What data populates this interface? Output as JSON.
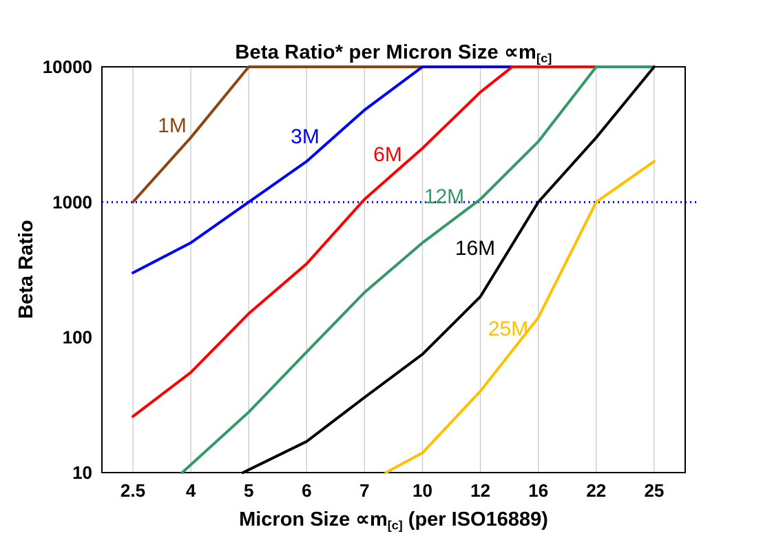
{
  "title": {
    "main": "Beta Ratio* per Micron Size ∝m",
    "sub": "[c]"
  },
  "y_axis_title": "Beta Ratio",
  "x_axis_title": {
    "pre": "Micron Size ∝m",
    "sub": "[c]",
    "post": " (per ISO16889)"
  },
  "chart_data": {
    "type": "line",
    "title": "Beta Ratio* per Micron Size ∝m[c]",
    "xlabel": "Micron Size ∝m[c] (per ISO16889)",
    "ylabel": "Beta Ratio",
    "y_scale": "log",
    "ylim": [
      10,
      10000
    ],
    "grid": "vertical-only",
    "legend_position": "inline-labels",
    "categories": [
      "2.5",
      "4",
      "5",
      "6",
      "7",
      "10",
      "12",
      "16",
      "22",
      "25"
    ],
    "y_tick_labels": [
      "10",
      "100",
      "1000",
      "10000"
    ],
    "reference_line": {
      "value": 1000,
      "color": "#0000EE",
      "style": "dotted"
    },
    "gridline_color": "#c9c9c9",
    "series": [
      {
        "name": "1M",
        "color": "#8B4513",
        "label_pos": [
          250,
          192
        ],
        "points": [
          [
            0,
            1000
          ],
          [
            1,
            3000
          ],
          [
            2,
            10000
          ],
          [
            5,
            10000
          ]
        ]
      },
      {
        "name": "3M",
        "color": "#0000FF",
        "label_pos": [
          443,
          208
        ],
        "points": [
          [
            0,
            300
          ],
          [
            1,
            500
          ],
          [
            2,
            1000
          ],
          [
            3,
            2000
          ],
          [
            4,
            4800
          ],
          [
            5,
            10000
          ],
          [
            6.55,
            10000
          ]
        ]
      },
      {
        "name": "6M",
        "color": "#FF0000",
        "label_pos": [
          563,
          234
        ],
        "points": [
          [
            0,
            26
          ],
          [
            1,
            55
          ],
          [
            2,
            150
          ],
          [
            3,
            350
          ],
          [
            4,
            1050
          ],
          [
            5,
            2500
          ],
          [
            6,
            6500
          ],
          [
            6.55,
            10000
          ],
          [
            8,
            10000
          ]
        ]
      },
      {
        "name": "12M",
        "color": "#339966",
        "label_pos": [
          645,
          295
        ],
        "points": [
          [
            0.85,
            10
          ],
          [
            2,
            28
          ],
          [
            3,
            78
          ],
          [
            4,
            215
          ],
          [
            5,
            500
          ],
          [
            6,
            1050
          ],
          [
            7,
            2800
          ],
          [
            8,
            10000
          ],
          [
            9,
            10000
          ]
        ]
      },
      {
        "name": "16M",
        "color": "#000000",
        "label_pos": [
          690,
          370
        ],
        "points": [
          [
            1.9,
            10
          ],
          [
            3,
            17
          ],
          [
            4,
            36
          ],
          [
            5,
            75
          ],
          [
            6,
            200
          ],
          [
            7,
            1000
          ],
          [
            8,
            3000
          ],
          [
            9,
            10000
          ]
        ]
      },
      {
        "name": "25M",
        "color": "#FFC000",
        "label_pos": [
          738,
          487
        ],
        "points": [
          [
            4.37,
            10
          ],
          [
            5,
            14
          ],
          [
            6,
            40
          ],
          [
            7,
            140
          ],
          [
            8,
            1000
          ],
          [
            9,
            2000
          ]
        ]
      }
    ]
  }
}
